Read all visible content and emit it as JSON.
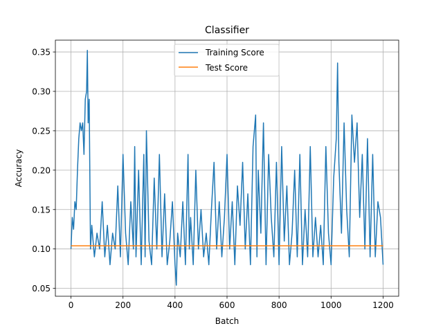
{
  "chart_data": {
    "type": "line",
    "title": "Classifier",
    "xlabel": "Batch",
    "ylabel": "Accuracy",
    "xlim": [
      -60,
      1260
    ],
    "ylim": [
      0.04,
      0.365
    ],
    "xticks": [
      0,
      200,
      400,
      600,
      800,
      1000,
      1200
    ],
    "xtick_labels": [
      "0",
      "200",
      "400",
      "600",
      "800",
      "1000",
      "1200"
    ],
    "yticks": [
      0.05,
      0.1,
      0.15,
      0.2,
      0.25,
      0.3,
      0.35
    ],
    "ytick_labels": [
      "0.05",
      "0.10",
      "0.15",
      "0.20",
      "0.25",
      "0.30",
      "0.35"
    ],
    "grid": true,
    "legend_position": "top-center",
    "series": [
      {
        "name": "Training Score",
        "color": "#1f77b4",
        "x": [
          0,
          5,
          10,
          15,
          20,
          25,
          30,
          35,
          40,
          45,
          50,
          55,
          60,
          63,
          66,
          70,
          75,
          80,
          90,
          100,
          110,
          120,
          130,
          140,
          150,
          160,
          170,
          180,
          190,
          200,
          210,
          220,
          230,
          240,
          245,
          250,
          260,
          270,
          280,
          285,
          290,
          300,
          310,
          320,
          330,
          340,
          350,
          360,
          370,
          380,
          390,
          400,
          405,
          410,
          420,
          430,
          440,
          450,
          455,
          460,
          470,
          480,
          490,
          500,
          510,
          520,
          530,
          540,
          550,
          560,
          570,
          580,
          590,
          600,
          610,
          620,
          630,
          640,
          650,
          660,
          670,
          680,
          690,
          700,
          710,
          715,
          720,
          730,
          740,
          750,
          760,
          770,
          780,
          790,
          800,
          810,
          820,
          830,
          840,
          850,
          860,
          870,
          880,
          890,
          900,
          910,
          920,
          930,
          940,
          950,
          960,
          970,
          980,
          990,
          1000,
          1010,
          1020,
          1025,
          1030,
          1040,
          1050,
          1060,
          1070,
          1080,
          1090,
          1100,
          1110,
          1120,
          1130,
          1140,
          1150,
          1160,
          1170,
          1180,
          1190,
          1200
        ],
        "y": [
          0.1,
          0.14,
          0.125,
          0.16,
          0.15,
          0.2,
          0.24,
          0.26,
          0.25,
          0.26,
          0.22,
          0.29,
          0.3,
          0.352,
          0.26,
          0.29,
          0.1,
          0.13,
          0.09,
          0.12,
          0.1,
          0.16,
          0.09,
          0.13,
          0.08,
          0.12,
          0.1,
          0.18,
          0.09,
          0.22,
          0.12,
          0.08,
          0.16,
          0.1,
          0.23,
          0.09,
          0.2,
          0.08,
          0.22,
          0.09,
          0.25,
          0.11,
          0.08,
          0.19,
          0.1,
          0.22,
          0.09,
          0.17,
          0.08,
          0.11,
          0.16,
          0.08,
          0.054,
          0.12,
          0.09,
          0.16,
          0.08,
          0.22,
          0.1,
          0.14,
          0.08,
          0.2,
          0.1,
          0.15,
          0.09,
          0.12,
          0.08,
          0.15,
          0.21,
          0.1,
          0.16,
          0.09,
          0.14,
          0.22,
          0.1,
          0.16,
          0.08,
          0.18,
          0.13,
          0.21,
          0.1,
          0.17,
          0.08,
          0.23,
          0.27,
          0.09,
          0.2,
          0.12,
          0.26,
          0.08,
          0.22,
          0.14,
          0.09,
          0.21,
          0.08,
          0.23,
          0.11,
          0.18,
          0.08,
          0.12,
          0.2,
          0.09,
          0.22,
          0.08,
          0.15,
          0.09,
          0.23,
          0.09,
          0.14,
          0.09,
          0.13,
          0.08,
          0.23,
          0.12,
          0.08,
          0.19,
          0.24,
          0.336,
          0.21,
          0.12,
          0.26,
          0.15,
          0.09,
          0.27,
          0.21,
          0.26,
          0.14,
          0.22,
          0.1,
          0.24,
          0.09,
          0.22,
          0.09,
          0.16,
          0.14,
          0.08
        ]
      },
      {
        "name": "Test Score",
        "color": "#ff7f0e",
        "x": [
          0,
          1200
        ],
        "y": [
          0.104,
          0.104
        ]
      }
    ]
  }
}
